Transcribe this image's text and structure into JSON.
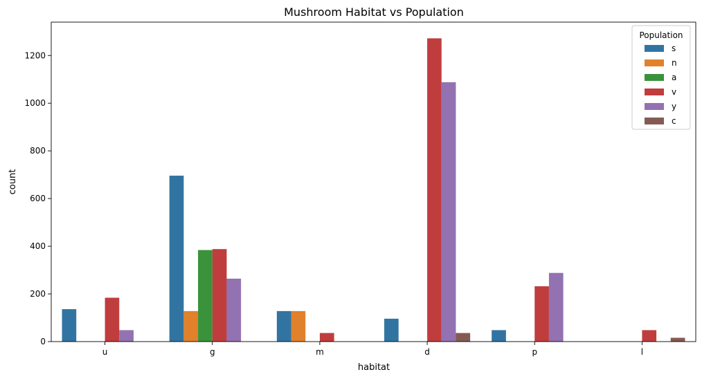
{
  "chart_data": {
    "type": "bar",
    "title": "Mushroom Habitat vs Population",
    "xlabel": "habitat",
    "ylabel": "count",
    "ylim": [
      0,
      1340
    ],
    "yticks": [
      0,
      200,
      400,
      600,
      800,
      1000,
      1200
    ],
    "categories": [
      "u",
      "g",
      "m",
      "d",
      "p",
      "l"
    ],
    "grid": false,
    "legend": {
      "title": "Population",
      "placement": "top-right"
    },
    "series": [
      {
        "name": "s",
        "color": "#3274a1",
        "values": [
          136,
          696,
          128,
          96,
          48,
          0
        ]
      },
      {
        "name": "n",
        "color": "#e1812c",
        "values": [
          0,
          128,
          128,
          0,
          0,
          0
        ]
      },
      {
        "name": "a",
        "color": "#3a923a",
        "values": [
          0,
          384,
          0,
          0,
          0,
          0
        ]
      },
      {
        "name": "v",
        "color": "#c03d3e",
        "values": [
          184,
          388,
          36,
          1272,
          232,
          48
        ]
      },
      {
        "name": "y",
        "color": "#9372b2",
        "values": [
          48,
          264,
          0,
          1088,
          288,
          0
        ]
      },
      {
        "name": "c",
        "color": "#845b53",
        "values": [
          0,
          0,
          0,
          36,
          0,
          16
        ]
      }
    ]
  }
}
